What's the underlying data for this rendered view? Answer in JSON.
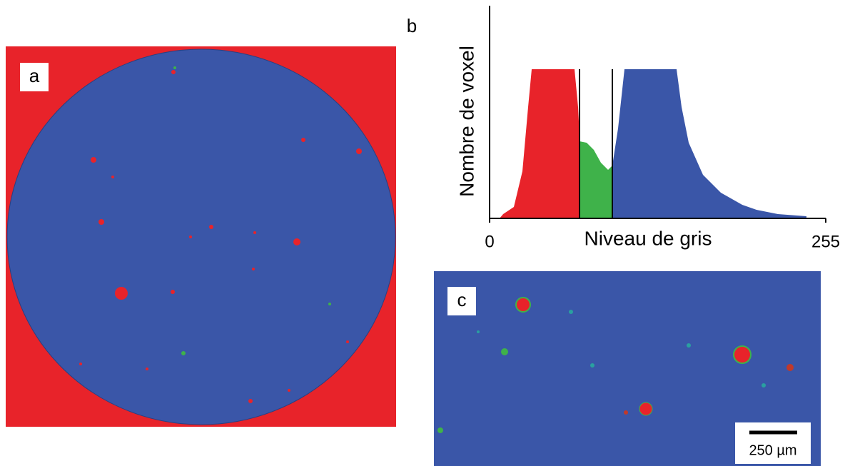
{
  "panels": {
    "a": {
      "label": "a"
    },
    "b": {
      "label": "b"
    },
    "c": {
      "label": "c",
      "scale_bar": "250 µm"
    }
  },
  "histogram": {
    "ylabel": "Nombre de voxel",
    "xlabel": "Niveau de gris",
    "xlim": [
      0,
      255
    ],
    "xticks": [
      0,
      255
    ]
  }
}
